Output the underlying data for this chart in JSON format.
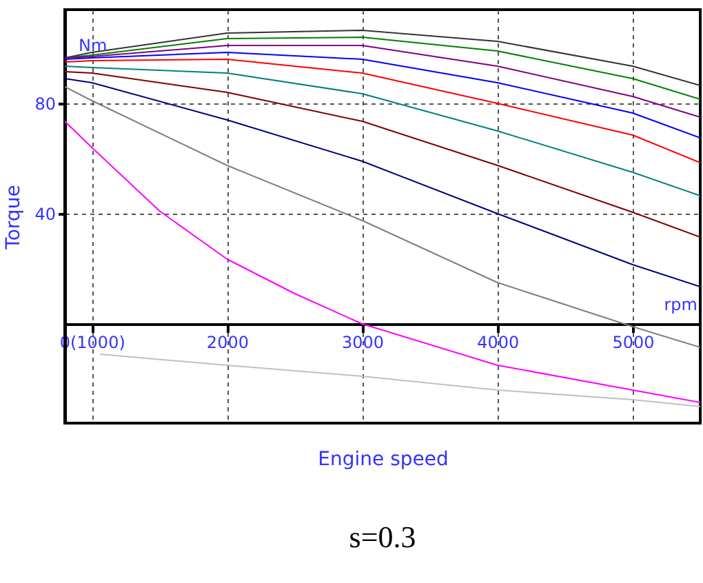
{
  "chart_data": {
    "type": "line",
    "title": "s=0.3",
    "xlabel": "Engine speed",
    "ylabel": "Torque",
    "annotations": [
      "Nm",
      "rpm"
    ],
    "x": [
      800,
      1000,
      2000,
      3000,
      4000,
      5000,
      5500
    ],
    "xlim": [
      800,
      5500
    ],
    "ylim": [
      -36,
      114
    ],
    "xticks": [
      {
        "value": 1000,
        "label": "0(1000)"
      },
      2000,
      3000,
      4000,
      5000
    ],
    "yticks": [
      40,
      80
    ],
    "grid": true,
    "marker": "none",
    "line_style": "solid",
    "series": [
      {
        "color": "#333333",
        "values": [
          96.5,
          98.5,
          105.5,
          106.5,
          102.5,
          93.5,
          86.5
        ]
      },
      {
        "color": "#008000",
        "values": [
          96.5,
          97.5,
          103.5,
          104,
          99,
          89,
          81.5
        ]
      },
      {
        "color": "#800080",
        "values": [
          96.5,
          97,
          101,
          101,
          93.5,
          82.5,
          75
        ]
      },
      {
        "color": "#0000ff",
        "values": [
          96,
          96.5,
          98.5,
          96,
          87.5,
          76.5,
          67.5
        ]
      },
      {
        "color": "#ff0000",
        "values": [
          95,
          95.5,
          96,
          91,
          80,
          68.5,
          58.5
        ]
      },
      {
        "color": "#008080",
        "values": [
          93.5,
          93,
          91,
          83.5,
          70,
          55,
          46.5
        ]
      },
      {
        "color": "#800000",
        "values": [
          91.5,
          91,
          84,
          73.5,
          57.5,
          40.5,
          31.5
        ]
      },
      {
        "color": "#000080",
        "values": [
          89,
          87.5,
          74,
          59,
          40,
          21.5,
          13.5
        ]
      },
      {
        "color": "#808080",
        "values": [
          86,
          81,
          57.5,
          37.5,
          15,
          -1,
          -8.5
        ]
      },
      {
        "color": "#ff00ff",
        "x": [
          800,
          1000,
          1500,
          2000,
          2500,
          3000,
          4000,
          5000,
          5500
        ],
        "values": [
          73.5,
          64,
          41,
          23.5,
          11,
          0,
          -15,
          -24,
          -28.5
        ]
      },
      {
        "color": "#c0c0c0",
        "x": [
          1060,
          2000,
          3000,
          4000,
          5000,
          5500
        ],
        "values": [
          -11,
          -15,
          -19,
          -24,
          -27.5,
          -30
        ]
      }
    ]
  }
}
